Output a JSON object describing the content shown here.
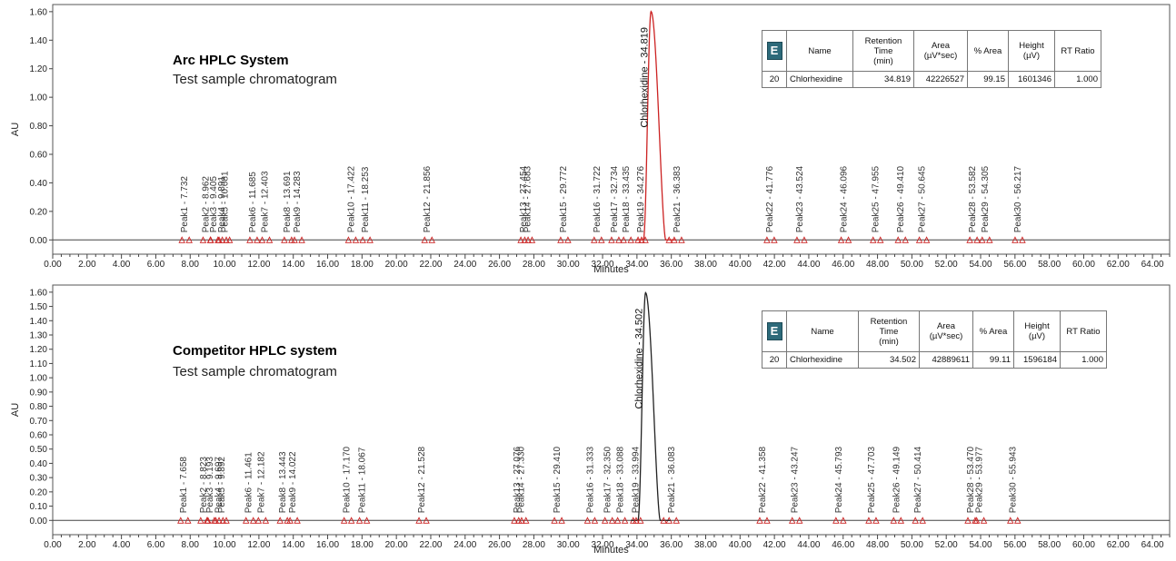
{
  "chart_data": [
    {
      "type": "line",
      "title": "Arc HPLC System",
      "subtitle": "Test sample chromatogram",
      "xlabel": "Minutes",
      "ylabel": "AU",
      "xlim": [
        0,
        65
      ],
      "ylim": [
        -0.1,
        1.65
      ],
      "x_ticks": [
        "0.00",
        "2.00",
        "4.00",
        "6.00",
        "8.00",
        "10.00",
        "12.00",
        "14.00",
        "16.00",
        "18.00",
        "20.00",
        "22.00",
        "24.00",
        "26.00",
        "28.00",
        "30.00",
        "32.00",
        "34.00",
        "36.00",
        "38.00",
        "40.00",
        "42.00",
        "44.00",
        "46.00",
        "48.00",
        "50.00",
        "52.00",
        "54.00",
        "56.00",
        "58.00",
        "60.00",
        "62.00",
        "64.00"
      ],
      "y_ticks": [
        "0.00",
        "0.20",
        "0.40",
        "0.60",
        "0.80",
        "1.00",
        "1.20",
        "1.40",
        "1.60"
      ],
      "main_peak": {
        "label": "Chlorhexidine - 34.819",
        "rt": 34.819,
        "height": 1.601346,
        "color": "#cc2222"
      },
      "peaks": [
        {
          "label": "Peak1 - 7.732",
          "rt": 7.732
        },
        {
          "label": "Peak2 - 8.962",
          "rt": 8.962
        },
        {
          "label": "Peak3 - 9.405",
          "rt": 9.405
        },
        {
          "label": "Peak4 - 9.891",
          "rt": 9.891
        },
        {
          "label": "Peak5 - 10.081",
          "rt": 10.081
        },
        {
          "label": "Peak6 - 11.685",
          "rt": 11.685
        },
        {
          "label": "Peak7 - 12.403",
          "rt": 12.403
        },
        {
          "label": "Peak8 - 13.691",
          "rt": 13.691
        },
        {
          "label": "Peak9 - 14.283",
          "rt": 14.283
        },
        {
          "label": "Peak10 - 17.422",
          "rt": 17.422
        },
        {
          "label": "Peak11 - 18.253",
          "rt": 18.253
        },
        {
          "label": "Peak12 - 21.856",
          "rt": 21.856
        },
        {
          "label": "Peak13 - 27.454",
          "rt": 27.454
        },
        {
          "label": "Peak14 - 27.683",
          "rt": 27.683
        },
        {
          "label": "Peak15 - 29.772",
          "rt": 29.772
        },
        {
          "label": "Peak16 - 31.722",
          "rt": 31.722
        },
        {
          "label": "Peak17 - 32.734",
          "rt": 32.734
        },
        {
          "label": "Peak18 - 33.435",
          "rt": 33.435
        },
        {
          "label": "Peak19 - 34.276",
          "rt": 34.276
        },
        {
          "label": "Peak21 - 36.383",
          "rt": 36.383
        },
        {
          "label": "Peak22 - 41.776",
          "rt": 41.776
        },
        {
          "label": "Peak23 - 43.524",
          "rt": 43.524
        },
        {
          "label": "Peak24 - 46.096",
          "rt": 46.096
        },
        {
          "label": "Peak25 - 47.955",
          "rt": 47.955
        },
        {
          "label": "Peak26 - 49.410",
          "rt": 49.41
        },
        {
          "label": "Peak27 - 50.645",
          "rt": 50.645
        },
        {
          "label": "Peak28 - 53.582",
          "rt": 53.582
        },
        {
          "label": "Peak29 - 54.305",
          "rt": 54.305
        },
        {
          "label": "Peak30 - 56.217",
          "rt": 56.217
        }
      ],
      "table": {
        "headers": [
          "",
          "Name",
          "Retention Time (min)",
          "Area (µV*sec)",
          "% Area",
          "Height (µV)",
          "RT Ratio"
        ],
        "rows": [
          [
            "20",
            "Chlorhexidine",
            "34.819",
            "42226527",
            "99.15",
            "1601346",
            "1.000"
          ]
        ]
      }
    },
    {
      "type": "line",
      "title": "Competitor HPLC system",
      "subtitle": "Test sample chromatogram",
      "xlabel": "Minutes",
      "ylabel": "AU",
      "xlim": [
        0,
        65
      ],
      "ylim": [
        -0.1,
        1.65
      ],
      "x_ticks": [
        "0.00",
        "2.00",
        "4.00",
        "6.00",
        "8.00",
        "10.00",
        "12.00",
        "14.00",
        "16.00",
        "18.00",
        "20.00",
        "22.00",
        "24.00",
        "26.00",
        "28.00",
        "30.00",
        "32.00",
        "34.00",
        "36.00",
        "38.00",
        "40.00",
        "42.00",
        "44.00",
        "46.00",
        "48.00",
        "50.00",
        "52.00",
        "54.00",
        "56.00",
        "58.00",
        "60.00",
        "62.00",
        "64.00"
      ],
      "y_ticks": [
        "0.00",
        "0.10",
        "0.20",
        "0.30",
        "0.40",
        "0.50",
        "0.60",
        "0.70",
        "0.80",
        "0.90",
        "1.00",
        "1.10",
        "1.20",
        "1.30",
        "1.40",
        "1.50",
        "1.60"
      ],
      "main_peak": {
        "label": "Chlorhexidine - 34.502",
        "rt": 34.502,
        "height": 1.596184,
        "color": "#222222"
      },
      "peaks": [
        {
          "label": "Peak1 - 7.658",
          "rt": 7.658
        },
        {
          "label": "Peak2 - 8.823",
          "rt": 8.823
        },
        {
          "label": "Peak3 - 9.193",
          "rt": 9.193
        },
        {
          "label": "Peak4 - 9.697",
          "rt": 9.697
        },
        {
          "label": "Peak5 - 9.892",
          "rt": 9.892
        },
        {
          "label": "Peak6 - 11.461",
          "rt": 11.461
        },
        {
          "label": "Peak7 - 12.182",
          "rt": 12.182
        },
        {
          "label": "Peak8 - 13.443",
          "rt": 13.443
        },
        {
          "label": "Peak9 - 14.022",
          "rt": 14.022
        },
        {
          "label": "Peak10 - 17.170",
          "rt": 17.17
        },
        {
          "label": "Peak11 - 18.067",
          "rt": 18.067
        },
        {
          "label": "Peak12 - 21.528",
          "rt": 21.528
        },
        {
          "label": "Peak13 - 27.076",
          "rt": 27.076
        },
        {
          "label": "Peak14 - 27.330",
          "rt": 27.33
        },
        {
          "label": "Peak15 - 29.410",
          "rt": 29.41
        },
        {
          "label": "Peak16 - 31.333",
          "rt": 31.333
        },
        {
          "label": "Peak17 - 32.350",
          "rt": 32.35
        },
        {
          "label": "Peak18 - 33.088",
          "rt": 33.088
        },
        {
          "label": "Peak19 - 33.994",
          "rt": 33.994
        },
        {
          "label": "Peak21 - 36.083",
          "rt": 36.083
        },
        {
          "label": "Peak22 - 41.358",
          "rt": 41.358
        },
        {
          "label": "Peak23 - 43.247",
          "rt": 43.247
        },
        {
          "label": "Peak24 - 45.793",
          "rt": 45.793
        },
        {
          "label": "Peak25 - 47.703",
          "rt": 47.703
        },
        {
          "label": "Peak26 - 49.149",
          "rt": 49.149
        },
        {
          "label": "Peak27 - 50.414",
          "rt": 50.414
        },
        {
          "label": "Peak28 - 53.470",
          "rt": 53.47
        },
        {
          "label": "Peak29 - 53.977",
          "rt": 53.977
        },
        {
          "label": "Peak30 - 55.943",
          "rt": 55.943
        }
      ],
      "table": {
        "headers": [
          "",
          "Name",
          "Retention Time (min)",
          "Area (µV*sec)",
          "% Area",
          "Height (µV)",
          "RT Ratio"
        ],
        "rows": [
          [
            "20",
            "Chlorhexidine",
            "34.502",
            "42889611",
            "99.11",
            "1596184",
            "1.000"
          ]
        ]
      }
    }
  ],
  "icons": {
    "table_corner": "empower-grid-icon",
    "table_corner_glyph": "E"
  },
  "colors": {
    "baseline": "#444444",
    "peak_marker": "#cc2222",
    "frame": "#555555"
  }
}
